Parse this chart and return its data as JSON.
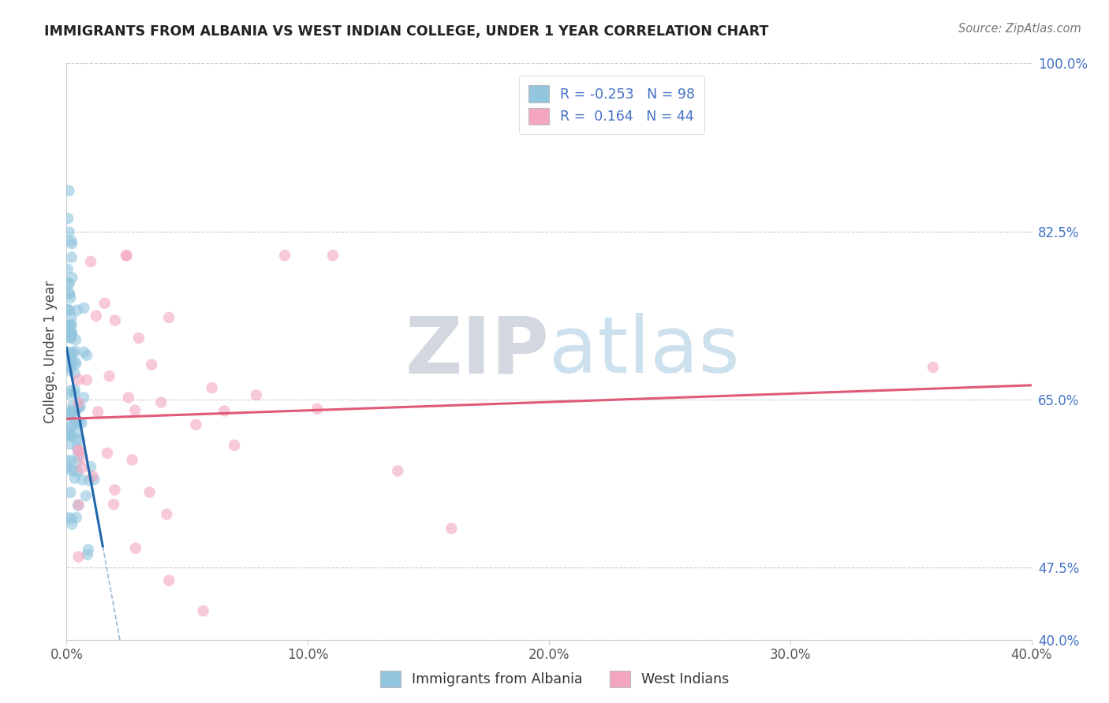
{
  "title": "IMMIGRANTS FROM ALBANIA VS WEST INDIAN COLLEGE, UNDER 1 YEAR CORRELATION CHART",
  "source": "Source: ZipAtlas.com",
  "ylabel": "College, Under 1 year",
  "legend_label1": "Immigrants from Albania",
  "legend_label2": "West Indians",
  "R1": -0.253,
  "N1": 98,
  "R2": 0.164,
  "N2": 44,
  "x_min": 0.0,
  "x_max": 0.4,
  "y_min": 0.4,
  "y_max": 1.0,
  "color_blue": "#92c5de",
  "color_pink": "#f4a6c0",
  "color_blue_line": "#2166ac",
  "color_pink_line": "#e05a78",
  "y_ticks": [
    0.4,
    0.475,
    0.65,
    0.825,
    1.0
  ],
  "x_ticks": [
    0.0,
    0.1,
    0.2,
    0.3,
    0.4
  ]
}
